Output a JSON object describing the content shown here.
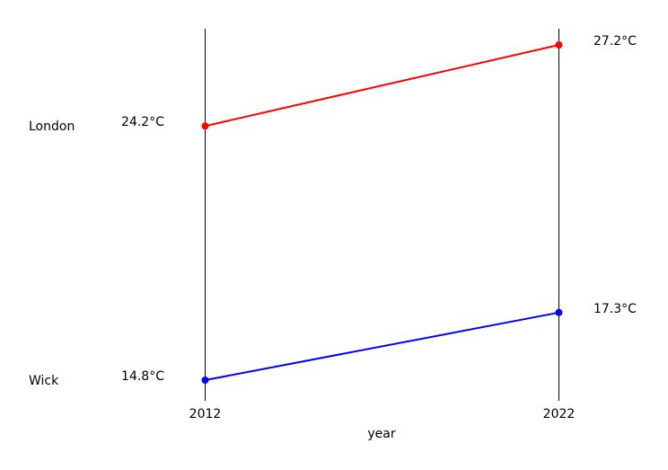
{
  "chart_data": {
    "type": "slope",
    "title": "",
    "xlabel": "year",
    "ylabel": "",
    "x": [
      "2012",
      "2022"
    ],
    "value_unit": "°C",
    "ylim": [
      14.8,
      27.2
    ],
    "series": [
      {
        "name": "London",
        "values": [
          24.2,
          27.2
        ],
        "value_labels": [
          "24.2°C",
          "27.2°C"
        ],
        "color": "#ff0000"
      },
      {
        "name": "Wick",
        "values": [
          14.8,
          17.3
        ],
        "value_labels": [
          "14.8°C",
          "17.3°C"
        ],
        "color": "#0000ff"
      }
    ]
  }
}
